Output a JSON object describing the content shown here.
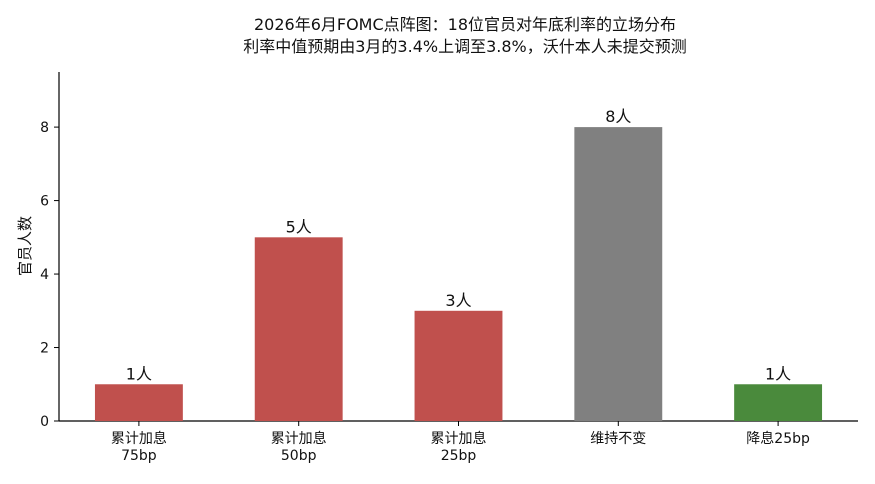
{
  "chart_data": {
    "type": "bar",
    "title": "2026年6月FOMC点阵图：18位官员对年底利率的立场分布",
    "subtitle": "利率中值预期由3月的3.4%上调至3.8%，沃什本人未提交预测",
    "xlabel": "",
    "ylabel": "官员人数",
    "ylim": [
      0,
      9.5
    ],
    "yticks": [
      0,
      2,
      4,
      6,
      8
    ],
    "grid": false,
    "categories": [
      [
        "累计加息",
        "75bp"
      ],
      [
        "累计加息",
        "50bp"
      ],
      [
        "累计加息",
        "25bp"
      ],
      [
        "维持不变"
      ],
      [
        "降息25bp"
      ]
    ],
    "values": [
      1,
      5,
      3,
      8,
      1
    ],
    "data_labels": [
      "1人",
      "5人",
      "3人",
      "8人",
      "1人"
    ],
    "colors": [
      "#c0504d",
      "#c0504d",
      "#c0504d",
      "#808080",
      "#4a8a3c"
    ]
  }
}
